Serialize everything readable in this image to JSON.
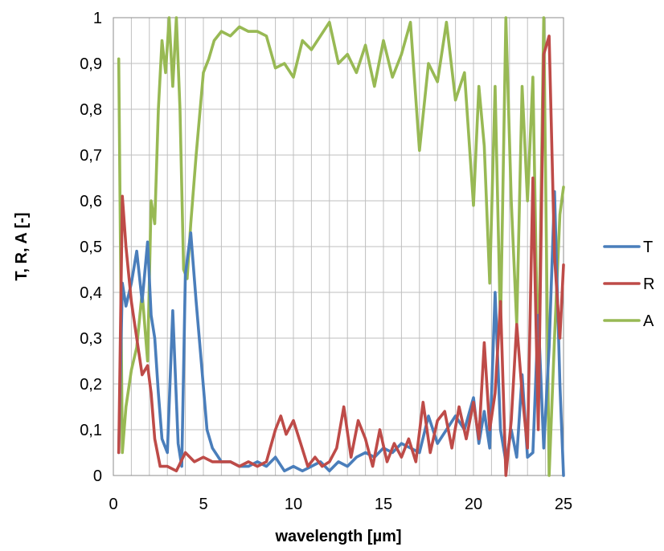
{
  "chart_data": {
    "type": "line",
    "title": "",
    "xlabel": "wavelength [µm]",
    "ylabel": "T, R, A [-]",
    "xlim": [
      0,
      25
    ],
    "ylim": [
      0,
      1
    ],
    "x_ticks": [
      "0",
      "5",
      "10",
      "15",
      "20",
      "25"
    ],
    "y_ticks": [
      "0",
      "0,1",
      "0,2",
      "0,3",
      "0,4",
      "0,5",
      "0,6",
      "0,7",
      "0,8",
      "0,9",
      "1"
    ],
    "x_minor_step": 1,
    "grid": true,
    "legend": "right",
    "series": [
      {
        "name": "T",
        "color": "#4a7ebb",
        "x": [
          0.3,
          0.5,
          0.7,
          1.0,
          1.3,
          1.6,
          1.9,
          2.1,
          2.3,
          2.5,
          2.7,
          3.0,
          3.3,
          3.6,
          3.8,
          4.0,
          4.3,
          4.6,
          4.9,
          5.2,
          5.5,
          6.0,
          6.5,
          7.0,
          7.5,
          8.0,
          8.5,
          9.0,
          9.5,
          10.0,
          10.5,
          11.0,
          11.5,
          12.0,
          12.5,
          13.0,
          13.5,
          14.0,
          14.5,
          15.0,
          15.5,
          16.0,
          16.5,
          17.0,
          17.5,
          18.0,
          18.5,
          19.0,
          19.5,
          20.0,
          20.3,
          20.6,
          20.9,
          21.2,
          21.5,
          21.8,
          22.1,
          22.4,
          22.7,
          23.0,
          23.3,
          23.6,
          23.9,
          24.2,
          24.5,
          24.8,
          25.0
        ],
        "values": [
          0.05,
          0.42,
          0.37,
          0.42,
          0.49,
          0.38,
          0.51,
          0.35,
          0.3,
          0.18,
          0.08,
          0.05,
          0.36,
          0.07,
          0.02,
          0.44,
          0.53,
          0.38,
          0.24,
          0.1,
          0.06,
          0.03,
          0.03,
          0.02,
          0.02,
          0.03,
          0.02,
          0.04,
          0.01,
          0.02,
          0.01,
          0.02,
          0.03,
          0.01,
          0.03,
          0.02,
          0.04,
          0.05,
          0.04,
          0.06,
          0.05,
          0.07,
          0.06,
          0.05,
          0.13,
          0.07,
          0.1,
          0.13,
          0.1,
          0.17,
          0.07,
          0.14,
          0.06,
          0.4,
          0.1,
          0.03,
          0.1,
          0.04,
          0.22,
          0.04,
          0.05,
          0.35,
          0.06,
          0.28,
          0.62,
          0.2,
          0.0
        ]
      },
      {
        "name": "R",
        "color": "#be4b48",
        "x": [
          0.3,
          0.5,
          0.7,
          1.0,
          1.3,
          1.6,
          1.9,
          2.1,
          2.3,
          2.6,
          3.0,
          3.5,
          4.0,
          4.5,
          5.0,
          5.5,
          6.0,
          6.5,
          7.0,
          7.5,
          8.0,
          8.5,
          9.0,
          9.3,
          9.6,
          10.0,
          10.4,
          10.8,
          11.2,
          11.6,
          12.0,
          12.4,
          12.8,
          13.2,
          13.6,
          14.0,
          14.4,
          14.8,
          15.2,
          15.6,
          16.0,
          16.4,
          16.8,
          17.2,
          17.6,
          18.0,
          18.4,
          18.8,
          19.2,
          19.6,
          20.0,
          20.3,
          20.6,
          20.9,
          21.2,
          21.5,
          21.8,
          22.1,
          22.4,
          22.7,
          23.0,
          23.3,
          23.6,
          23.9,
          24.2,
          24.5,
          24.8,
          25.0
        ],
        "values": [
          0.05,
          0.61,
          0.5,
          0.38,
          0.3,
          0.22,
          0.24,
          0.18,
          0.08,
          0.02,
          0.02,
          0.01,
          0.05,
          0.03,
          0.04,
          0.03,
          0.03,
          0.03,
          0.02,
          0.03,
          0.02,
          0.03,
          0.1,
          0.13,
          0.09,
          0.12,
          0.07,
          0.02,
          0.04,
          0.02,
          0.03,
          0.06,
          0.15,
          0.04,
          0.12,
          0.08,
          0.02,
          0.1,
          0.03,
          0.07,
          0.04,
          0.08,
          0.03,
          0.16,
          0.05,
          0.12,
          0.14,
          0.06,
          0.15,
          0.08,
          0.16,
          0.08,
          0.29,
          0.1,
          0.18,
          0.38,
          0.0,
          0.12,
          0.33,
          0.18,
          0.06,
          0.65,
          0.1,
          0.92,
          0.96,
          0.48,
          0.3,
          0.46
        ]
      },
      {
        "name": "A",
        "color": "#98b954",
        "x": [
          0.3,
          0.5,
          0.7,
          1.0,
          1.3,
          1.6,
          1.9,
          2.1,
          2.3,
          2.5,
          2.7,
          2.9,
          3.1,
          3.3,
          3.5,
          3.7,
          3.9,
          4.1,
          4.3,
          4.6,
          5.0,
          5.3,
          5.6,
          6.0,
          6.5,
          7.0,
          7.5,
          8.0,
          8.5,
          9.0,
          9.5,
          10.0,
          10.5,
          11.0,
          11.5,
          12.0,
          12.5,
          13.0,
          13.5,
          14.0,
          14.5,
          15.0,
          15.5,
          16.0,
          16.5,
          17.0,
          17.5,
          18.0,
          18.5,
          19.0,
          19.5,
          20.0,
          20.3,
          20.6,
          20.9,
          21.2,
          21.5,
          21.8,
          22.1,
          22.4,
          22.7,
          23.0,
          23.3,
          23.6,
          23.9,
          24.2,
          24.5,
          24.8,
          25.0
        ],
        "values": [
          0.91,
          0.05,
          0.15,
          0.23,
          0.28,
          0.4,
          0.25,
          0.6,
          0.55,
          0.8,
          0.95,
          0.88,
          1.0,
          0.85,
          1.0,
          0.8,
          0.45,
          0.43,
          0.55,
          0.7,
          0.88,
          0.91,
          0.95,
          0.97,
          0.96,
          0.98,
          0.97,
          0.97,
          0.96,
          0.89,
          0.9,
          0.87,
          0.95,
          0.93,
          0.96,
          0.99,
          0.9,
          0.92,
          0.88,
          0.94,
          0.85,
          0.95,
          0.87,
          0.92,
          0.99,
          0.71,
          0.9,
          0.86,
          0.99,
          0.82,
          0.88,
          0.59,
          0.85,
          0.72,
          0.42,
          0.85,
          0.32,
          1.0,
          0.6,
          0.33,
          0.85,
          0.6,
          0.87,
          0.2,
          1.0,
          0.0,
          0.3,
          0.57,
          0.63
        ]
      }
    ]
  }
}
